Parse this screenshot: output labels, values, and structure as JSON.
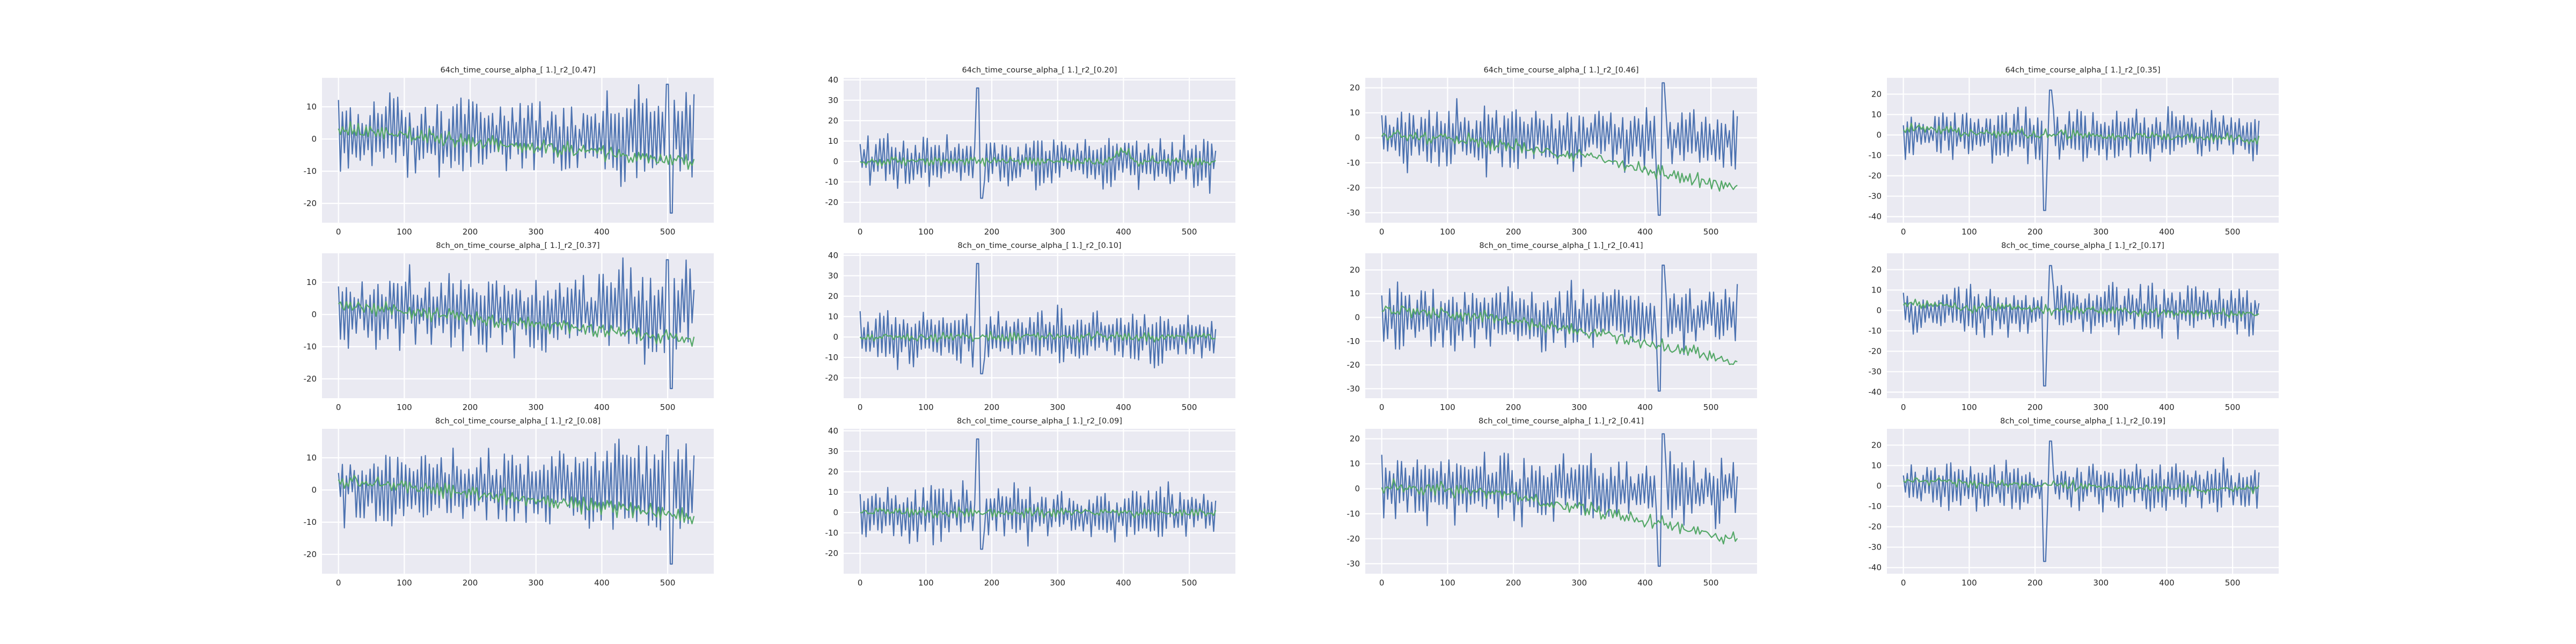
{
  "figure": {
    "background": "#ffffff",
    "axes_background": "#eaeaf2",
    "grid_color": "#ffffff"
  },
  "chart_data": [
    {
      "type": "line",
      "title": "64ch_time_course_alpha_[ 1.]_r2_[0.47]",
      "grid": true,
      "xlim": [
        -25,
        570
      ],
      "ylim": [
        -26,
        19
      ],
      "xticks": [
        0,
        100,
        200,
        300,
        400,
        500
      ],
      "yticks": [
        10,
        0,
        -10,
        -20
      ],
      "series": [
        {
          "color": "#4c72b0",
          "values": "[pattern] x=0..540 step 3: fast oscillation around ~2 with amplitude ~10, rising to peaks ~17 near x=480-510, troughs to ~-24 near x=500"
        },
        {
          "color": "#55a868",
          "values": "[pattern] x=0..540: smooth trend ~3 at start, slowly declining to ~-7 by x=480, ends ~-6"
        }
      ]
    },
    {
      "type": "line",
      "title": "64ch_time_course_alpha_[ 1.]_r2_[0.20]",
      "grid": true,
      "xlim": [
        -25,
        570
      ],
      "ylim": [
        -30,
        41
      ],
      "xticks": [
        0,
        100,
        200,
        300,
        400,
        500
      ],
      "yticks": [
        40,
        30,
        20,
        10,
        0,
        -10,
        -20
      ],
      "series": [
        {
          "color": "#4c72b0",
          "values": "[pattern] oscillation around ~0, amplitude ~14, spike to ~37 at x~180, troughs to ~-25"
        },
        {
          "color": "#55a868",
          "values": "[pattern] near 0 with small variations, bump to ~12 near x=400"
        }
      ]
    },
    {
      "type": "line",
      "title": "64ch_time_course_alpha_[ 1.]_r2_[0.46]",
      "grid": true,
      "xlim": [
        -25,
        570
      ],
      "ylim": [
        -34,
        24
      ],
      "xticks": [
        0,
        100,
        200,
        300,
        400,
        500
      ],
      "yticks": [
        20,
        10,
        0,
        -10,
        -20,
        -30
      ],
      "series": [
        {
          "color": "#4c72b0",
          "values": "[pattern] oscillation around ~0, amplitude ~14, peaks ~22, troughs ~-32 near x=420"
        },
        {
          "color": "#55a868",
          "values": "[pattern] ~0 at start, declining gradually to ~-22 by x=540"
        }
      ]
    },
    {
      "type": "line",
      "title": "64ch_time_course_alpha_[ 1.]_r2_[0.35]",
      "grid": true,
      "xlim": [
        -25,
        570
      ],
      "ylim": [
        -43,
        28
      ],
      "xticks": [
        0,
        100,
        200,
        300,
        400,
        500
      ],
      "yticks": [
        20,
        10,
        0,
        -10,
        -20,
        -30,
        -40
      ],
      "series": [
        {
          "color": "#4c72b0",
          "values": "[pattern] oscillation around ~0, amplitude ~14, peaks ~23, sharp trough ~-38 near x=215"
        },
        {
          "color": "#55a868",
          "values": "[pattern] ~5 at start, slowly declining to ~-3"
        }
      ]
    },
    {
      "type": "line",
      "title": "8ch_on_time_course_alpha_[ 1.]_r2_[0.37]",
      "grid": true,
      "xlim": [
        -25,
        570
      ],
      "ylim": [
        -26,
        19
      ],
      "xticks": [
        0,
        100,
        200,
        300,
        400,
        500
      ],
      "yticks": [
        10,
        0,
        -10,
        -20
      ],
      "series": [
        {
          "color": "#4c72b0",
          "values": "[pattern] similar to 64ch panel: oscillation around ~2, amplitude ~10, peaks ~17, troughs ~-24"
        },
        {
          "color": "#55a868",
          "values": "[pattern] ~3 declining to ~-9"
        }
      ]
    },
    {
      "type": "line",
      "title": "8ch_on_time_course_alpha_[ 1.]_r2_[0.10]",
      "grid": true,
      "xlim": [
        -25,
        570
      ],
      "ylim": [
        -30,
        41
      ],
      "xticks": [
        0,
        100,
        200,
        300,
        400,
        500
      ],
      "yticks": [
        40,
        30,
        20,
        10,
        0,
        -10,
        -20
      ],
      "series": [
        {
          "color": "#4c72b0",
          "values": "[pattern] oscillation around ~0, amplitude ~14, spike ~37 at x~180"
        },
        {
          "color": "#55a868",
          "values": "[pattern] flat near ~0"
        }
      ]
    },
    {
      "type": "line",
      "title": "8ch_on_time_course_alpha_[ 1.]_r2_[0.41]",
      "grid": true,
      "xlim": [
        -25,
        570
      ],
      "ylim": [
        -34,
        27
      ],
      "xticks": [
        0,
        100,
        200,
        300,
        400,
        500
      ],
      "yticks": [
        20,
        10,
        0,
        -10,
        -20,
        -30
      ],
      "series": [
        {
          "color": "#4c72b0",
          "values": "[pattern] oscillation around ~0, amplitude ~14, peaks ~24, troughs ~-31"
        },
        {
          "color": "#55a868",
          "values": "[pattern] ~4 declining to ~-20"
        }
      ]
    },
    {
      "type": "line",
      "title": "8ch_oc_time_course_alpha_[ 1.]_r2_[0.17]",
      "grid": true,
      "xlim": [
        -25,
        570
      ],
      "ylim": [
        -43,
        28
      ],
      "xticks": [
        0,
        100,
        200,
        300,
        400,
        500
      ],
      "yticks": [
        20,
        10,
        0,
        -10,
        -20,
        -30,
        -40
      ],
      "series": [
        {
          "color": "#4c72b0",
          "values": "[pattern] oscillation around ~0, amplitude ~14, trough ~-38 near x=215"
        },
        {
          "color": "#55a868",
          "values": "[pattern] flat ~0 declining slightly"
        }
      ]
    },
    {
      "type": "line",
      "title": "8ch_col_time_course_alpha_[ 1.]_r2_[0.08]",
      "grid": true,
      "xlim": [
        -25,
        570
      ],
      "ylim": [
        -26,
        19
      ],
      "xticks": [
        0,
        100,
        200,
        300,
        400,
        500
      ],
      "yticks": [
        10,
        0,
        -10,
        -20
      ],
      "series": [
        {
          "color": "#4c72b0",
          "values": "[pattern] oscillation around ~2, amplitude ~10, peaks ~17, troughs ~-24"
        },
        {
          "color": "#55a868",
          "values": "[pattern] ~2 declining to ~-7"
        }
      ]
    },
    {
      "type": "line",
      "title": "8ch_col_time_course_alpha_[ 1.]_r2_[0.09]",
      "grid": true,
      "xlim": [
        -25,
        570
      ],
      "ylim": [
        -30,
        41
      ],
      "xticks": [
        0,
        100,
        200,
        300,
        400,
        500
      ],
      "yticks": [
        40,
        30,
        20,
        10,
        0,
        -10,
        -20
      ],
      "series": [
        {
          "color": "#4c72b0",
          "values": "[pattern] oscillation around ~0, amplitude ~14, spike ~37 at x~180"
        },
        {
          "color": "#55a868",
          "values": "[pattern] flat near ~0"
        }
      ]
    },
    {
      "type": "line",
      "title": "8ch_col_time_course_alpha_[ 1.]_r2_[0.41]",
      "grid": true,
      "xlim": [
        -25,
        570
      ],
      "ylim": [
        -34,
        24
      ],
      "xticks": [
        0,
        100,
        200,
        300,
        400,
        500
      ],
      "yticks": [
        20,
        10,
        0,
        -10,
        -20,
        -30
      ],
      "series": [
        {
          "color": "#4c72b0",
          "values": "[pattern] oscillation around ~0, amplitude ~14, peaks ~22, troughs ~-32"
        },
        {
          "color": "#55a868",
          "values": "[pattern] ~0 declining to ~-22"
        }
      ]
    },
    {
      "type": "line",
      "title": "8ch_col_time_course_alpha_[ 1.]_r2_[0.19]",
      "grid": true,
      "xlim": [
        -25,
        570
      ],
      "ylim": [
        -43,
        28
      ],
      "xticks": [
        0,
        100,
        200,
        300,
        400,
        500
      ],
      "yticks": [
        20,
        10,
        0,
        -10,
        -20,
        -30,
        -40
      ],
      "series": [
        {
          "color": "#4c72b0",
          "values": "[pattern] oscillation around ~0, amplitude ~14, trough ~-38 near x=215"
        },
        {
          "color": "#55a868",
          "values": "[pattern] flat ~0 declining slightly"
        }
      ]
    }
  ]
}
